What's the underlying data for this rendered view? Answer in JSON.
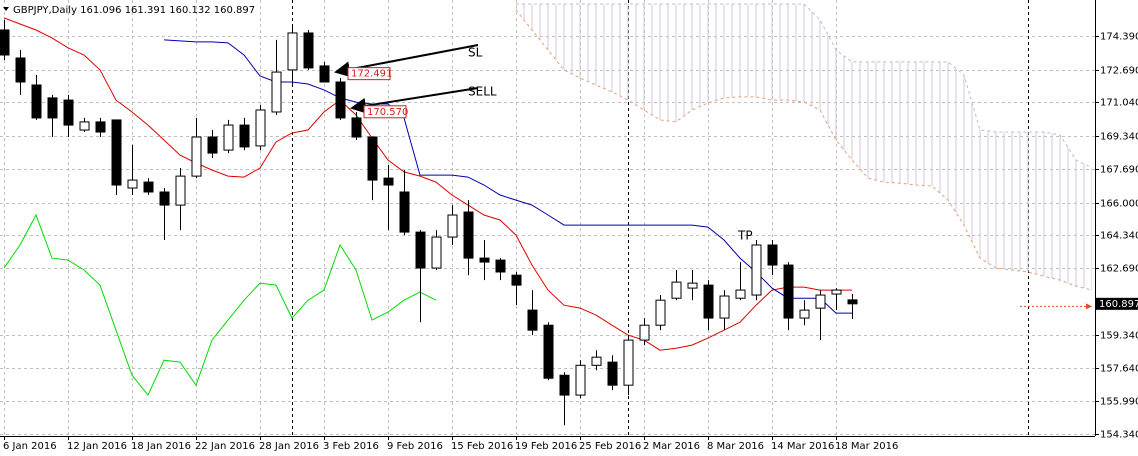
{
  "chart_data": {
    "type": "candlestick",
    "title": "GBPJPY,Daily  161.096 161.391 160.132 160.897",
    "categories": [
      "6 Jan 2016",
      null,
      null,
      null,
      "12 Jan 2016",
      null,
      null,
      null,
      "18 Jan 2016",
      null,
      null,
      null,
      "22 Jan 2016",
      null,
      null,
      null,
      "28 Jan 2016",
      null,
      null,
      null,
      "3 Feb 2016",
      null,
      null,
      null,
      "9 Feb 2016",
      null,
      null,
      null,
      "15 Feb 2016",
      null,
      null,
      null,
      "19 Feb 2016",
      null,
      null,
      null,
      "25 Feb 2016",
      null,
      null,
      null,
      "2 Mar 2016",
      null,
      null,
      null,
      "8 Mar 2016",
      null,
      null,
      null,
      "14 Mar 2016",
      null,
      null,
      null,
      "18 Mar 2016",
      null,
      null,
      null,
      null,
      null,
      null,
      null,
      null,
      null,
      null,
      null,
      null,
      null,
      null,
      null,
      null
    ],
    "candles": {
      "bull_color": "#ffffff",
      "bear_color": "#000000",
      "open": [
        174.69,
        173.28,
        171.92,
        171.27,
        171.16,
        169.65,
        170.06,
        170.16,
        166.73,
        167.03,
        166.53,
        165.87,
        167.33,
        169.3,
        168.64,
        169.9,
        168.85,
        170.56,
        172.68,
        174.54,
        172.88,
        172.07,
        170.26,
        169.3,
        167.23,
        166.53,
        164.51,
        162.7,
        164.26,
        165.52,
        163.2,
        163.1,
        162.34,
        160.58,
        159.82,
        157.3,
        156.3,
        157.8,
        157.96,
        156.8,
        159.07,
        159.82,
        161.18,
        161.69,
        161.84,
        160.18,
        161.18,
        161.34,
        163.86,
        162.85,
        160.18,
        160.68,
        161.39,
        161.096,
        null,
        null,
        null,
        null,
        null,
        null,
        null,
        null,
        null,
        null,
        null,
        null,
        null,
        null,
        null
      ],
      "high": [
        175.2,
        173.68,
        172.42,
        171.42,
        171.42,
        170.26,
        170.26,
        170.16,
        168.9,
        167.23,
        166.73,
        167.74,
        170.26,
        169.65,
        170.16,
        170.26,
        170.91,
        174.19,
        174.94,
        174.69,
        173.08,
        172.27,
        170.56,
        169.3,
        167.89,
        167.64,
        164.61,
        164.61,
        165.87,
        166.12,
        164.11,
        163.2,
        162.5,
        161.59,
        159.97,
        157.46,
        158.06,
        158.56,
        158.31,
        159.32,
        160.18,
        161.34,
        162.6,
        162.6,
        162.09,
        161.59,
        163.0,
        164.11,
        164.11,
        163.0,
        161.08,
        161.59,
        161.69,
        161.391,
        null,
        null,
        null,
        null,
        null,
        null,
        null,
        null,
        null,
        null,
        null,
        null,
        null,
        null,
        null
      ],
      "low": [
        173.18,
        171.42,
        170.16,
        169.3,
        169.3,
        169.55,
        169.3,
        166.38,
        166.38,
        166.38,
        164.11,
        164.61,
        167.23,
        168.24,
        168.49,
        168.64,
        168.64,
        170.41,
        171.92,
        172.68,
        172.07,
        170.16,
        169.15,
        166.12,
        164.61,
        164.36,
        159.97,
        162.6,
        163.86,
        162.34,
        162.09,
        162.09,
        160.83,
        159.32,
        157.05,
        154.78,
        156.14,
        157.55,
        156.55,
        156.3,
        158.82,
        159.57,
        161.08,
        161.08,
        159.57,
        159.57,
        161.08,
        161.08,
        162.34,
        159.57,
        159.82,
        159.07,
        160.58,
        160.132,
        null,
        null,
        null,
        null,
        null,
        null,
        null,
        null,
        null,
        null,
        null,
        null,
        null,
        null,
        null
      ],
      "close": [
        173.43,
        172.07,
        170.26,
        170.26,
        169.9,
        170.06,
        169.55,
        166.88,
        167.13,
        166.53,
        165.87,
        167.33,
        169.3,
        168.49,
        169.9,
        168.8,
        170.66,
        172.57,
        174.54,
        172.78,
        172.07,
        170.26,
        169.3,
        167.13,
        166.88,
        164.51,
        162.7,
        164.26,
        165.37,
        163.2,
        163.0,
        162.5,
        161.84,
        159.57,
        157.15,
        156.3,
        157.8,
        158.21,
        156.8,
        159.07,
        159.82,
        161.08,
        161.99,
        161.94,
        160.18,
        161.29,
        161.59,
        163.86,
        162.85,
        160.18,
        160.58,
        161.34,
        161.59,
        160.897,
        null,
        null,
        null,
        null,
        null,
        null,
        null,
        null,
        null,
        null,
        null,
        null,
        null,
        null,
        null
      ]
    },
    "series": [
      {
        "color": "#e00000",
        "style": "solid",
        "values": [
          175.3,
          174.99,
          174.69,
          174.29,
          173.79,
          173.43,
          172.68,
          171.16,
          170.56,
          169.9,
          169.15,
          168.39,
          167.99,
          167.64,
          167.33,
          167.28,
          167.74,
          169.05,
          169.5,
          169.65,
          170.56,
          171.16,
          170.41,
          169.25,
          168.14,
          167.54,
          167.33,
          167.03,
          166.38,
          165.87,
          165.37,
          165.12,
          164.36,
          162.85,
          161.59,
          160.83,
          160.68,
          160.33,
          159.82,
          159.32,
          159.07,
          158.56,
          158.66,
          158.82,
          159.17,
          159.57,
          159.97,
          160.83,
          161.59,
          161.74,
          161.74,
          161.59,
          161.59,
          161.59,
          null,
          null,
          null,
          null,
          null,
          null,
          null,
          null,
          null,
          null,
          null,
          null,
          null,
          null,
          null
        ]
      },
      {
        "color": "#0000b0",
        "style": "solid",
        "values": [
          null,
          null,
          null,
          null,
          null,
          null,
          null,
          null,
          null,
          null,
          174.19,
          174.14,
          174.09,
          174.09,
          174.04,
          173.43,
          172.37,
          172.07,
          172.07,
          171.97,
          171.67,
          171.27,
          171.06,
          170.96,
          170.96,
          170.26,
          167.38,
          167.38,
          167.38,
          167.28,
          166.88,
          166.38,
          166.12,
          165.87,
          165.37,
          164.86,
          164.86,
          164.86,
          164.86,
          164.86,
          164.86,
          164.86,
          164.86,
          164.86,
          164.76,
          164.11,
          163.2,
          162.5,
          161.69,
          161.18,
          161.18,
          161.18,
          160.43,
          160.43,
          null,
          null,
          null,
          null,
          null,
          null,
          null,
          null,
          null,
          null,
          null,
          null,
          null,
          null,
          null
        ]
      },
      {
        "color": "#00dd00",
        "style": "solid",
        "values": [
          162.7,
          163.86,
          165.37,
          163.2,
          163.1,
          162.6,
          161.84,
          159.57,
          157.3,
          156.3,
          158.06,
          157.96,
          156.8,
          159.07,
          160.08,
          161.08,
          161.94,
          161.84,
          160.18,
          161.08,
          161.59,
          163.86,
          162.6,
          160.08,
          160.48,
          161.08,
          161.49,
          161.08,
          null,
          null,
          null,
          null,
          null,
          null,
          null,
          null,
          null,
          null,
          null,
          null,
          null,
          null,
          null,
          null,
          null,
          null,
          null,
          null,
          null,
          null,
          null,
          null,
          null,
          null,
          null,
          null,
          null,
          null,
          null,
          null,
          null,
          null,
          null,
          null,
          null,
          null,
          null,
          null,
          null
        ]
      },
      {
        "color": "#e8a07a",
        "style": "dashed",
        "values": [
          null,
          null,
          null,
          null,
          null,
          null,
          null,
          null,
          null,
          null,
          null,
          null,
          null,
          null,
          null,
          null,
          null,
          null,
          null,
          null,
          null,
          null,
          null,
          null,
          null,
          null,
          null,
          null,
          null,
          null,
          null,
          null,
          175.7,
          174.69,
          173.68,
          172.68,
          172.27,
          171.92,
          171.57,
          171.16,
          170.66,
          170.16,
          170.06,
          170.66,
          171.01,
          171.27,
          171.32,
          171.32,
          171.16,
          171.16,
          171.06,
          170.66,
          169.15,
          168.14,
          167.23,
          167.03,
          166.98,
          166.88,
          166.83,
          166.12,
          164.86,
          163.2,
          162.7,
          162.6,
          162.5,
          162.29,
          162.09,
          161.79,
          161.59
        ]
      },
      {
        "color": "#c8b4d4",
        "style": "dashed",
        "values": [
          null,
          null,
          null,
          null,
          null,
          null,
          null,
          null,
          null,
          null,
          null,
          null,
          null,
          null,
          null,
          null,
          null,
          null,
          null,
          null,
          null,
          null,
          null,
          null,
          null,
          null,
          null,
          null,
          null,
          null,
          null,
          null,
          176.0,
          176.0,
          176.0,
          176.0,
          176.0,
          176.0,
          176.0,
          176.0,
          176.0,
          176.0,
          176.0,
          176.0,
          176.0,
          176.0,
          176.0,
          176.0,
          176.0,
          176.0,
          176.0,
          175.2,
          173.68,
          173.08,
          173.08,
          173.08,
          173.08,
          173.08,
          173.08,
          173.08,
          172.42,
          169.65,
          169.55,
          169.55,
          169.55,
          169.55,
          169.4,
          168.14,
          167.74
        ]
      }
    ],
    "cloud_color": "#d4c4e0",
    "ylim": [
      154.24,
      176.2
    ],
    "yticks": [
      {
        "value": 174.39,
        "label": "174.390"
      },
      {
        "value": 172.69,
        "label": "172.690"
      },
      {
        "value": 171.04,
        "label": "171.040"
      },
      {
        "value": 169.34,
        "label": "169.340"
      },
      {
        "value": 167.69,
        "label": "167.690"
      },
      {
        "value": 166.0,
        "label": "166.000"
      },
      {
        "value": 164.34,
        "label": "164.340"
      },
      {
        "value": 162.69,
        "label": "162.690"
      },
      {
        "value": 159.34,
        "label": "159.340"
      },
      {
        "value": 157.64,
        "label": "157.640"
      },
      {
        "value": 155.99,
        "label": "155.990"
      },
      {
        "value": 154.34,
        "label": "154.340"
      }
    ],
    "grid": true,
    "annotations": [
      {
        "text": "SL",
        "level": 172.491
      },
      {
        "text": "SELL",
        "level": {
          "value": 170.57,
          "label": "170.570"
        }
      },
      {
        "text": "TP"
      }
    ]
  }
}
